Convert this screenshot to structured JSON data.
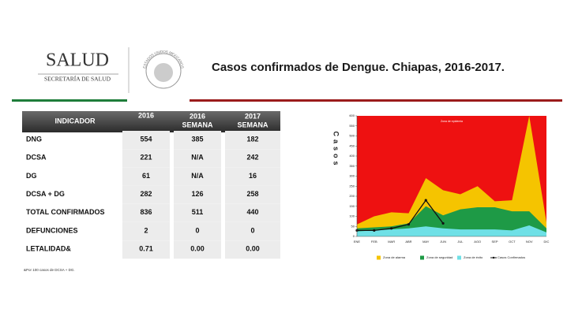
{
  "header": {
    "logo_title": "SALUD",
    "logo_subtitle": "SECRETARÍA DE SALUD",
    "emblem_text": "ESTADOS UNIDOS MEXICANOS",
    "title": "Casos confirmados de Dengue. Chiapas, 2016-2017."
  },
  "table": {
    "columns": [
      [
        "INDICADOR"
      ],
      [
        "2016"
      ],
      [
        "2016",
        "SEMANA"
      ],
      [
        "2017",
        "SEMANA"
      ]
    ],
    "rows": [
      [
        "DNG",
        "554",
        "385",
        "182"
      ],
      [
        "DCSA",
        "221",
        "N/A",
        "242"
      ],
      [
        "DG",
        "61",
        "N/A",
        "16"
      ],
      [
        "DCSA + DG",
        "282",
        "126",
        "258"
      ],
      [
        "TOTAL CONFIRMADOS",
        "836",
        "511",
        "440"
      ],
      [
        "DEFUNCIONES",
        "2",
        "0",
        "0"
      ],
      [
        "LETALIDAD&",
        "0.71",
        "0.00",
        "0.00"
      ]
    ],
    "footnote": "&Por 100 casos de DCSA + DG."
  },
  "chart_data": {
    "type": "area",
    "y_axis_label": "Casos",
    "background_label": "Zona de epidemia",
    "background_color": "#ee1111",
    "categories": [
      "ENE",
      "FEB",
      "MAR",
      "ABR",
      "MAY",
      "JUN",
      "JUL",
      "AGO",
      "SEP",
      "OCT",
      "NOV",
      "DIC"
    ],
    "ylim": [
      0,
      600
    ],
    "yticks": [
      0,
      50,
      100,
      150,
      200,
      250,
      300,
      350,
      400,
      450,
      500,
      550,
      600
    ],
    "series": [
      {
        "name": "Zona de alarma",
        "color": "#f5c400",
        "kind": "area",
        "values": [
          60,
          100,
          120,
          115,
          290,
          230,
          210,
          250,
          175,
          180,
          600,
          70
        ]
      },
      {
        "name": "Zona de seguridad",
        "color": "#1e9a46",
        "kind": "area",
        "values": [
          40,
          45,
          50,
          65,
          150,
          105,
          135,
          145,
          145,
          125,
          125,
          40
        ]
      },
      {
        "name": "Zona de éxito",
        "color": "#6fe0e6",
        "kind": "area",
        "values": [
          25,
          30,
          35,
          40,
          50,
          40,
          35,
          35,
          35,
          30,
          55,
          20
        ]
      },
      {
        "name": "Casos Confirmados",
        "color": "#111111",
        "kind": "line",
        "values": [
          30,
          30,
          40,
          60,
          180,
          65,
          null,
          null,
          null,
          null,
          null,
          null
        ]
      }
    ]
  }
}
